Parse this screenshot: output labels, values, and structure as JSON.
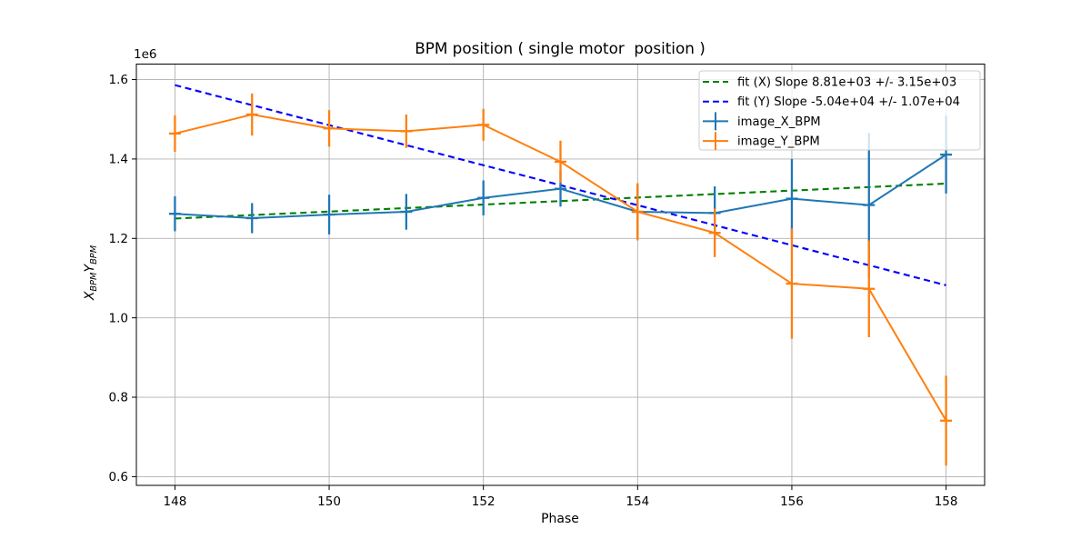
{
  "chart_data": {
    "type": "line",
    "title": "BPM position ( single motor  position )",
    "xlabel": "Phase",
    "ylabel_parts": {
      "x_var": "X",
      "x_sub": "BPM",
      "y_var": "Y",
      "y_sub": "BPM"
    },
    "offset_text": "1e6",
    "x_ticks": [
      148,
      150,
      152,
      154,
      156,
      158
    ],
    "y_ticks_e6": [
      "0.6",
      "0.8",
      "1.0",
      "1.2",
      "1.4",
      "1.6"
    ],
    "xlim": [
      147.5,
      158.5
    ],
    "ylim_e6": [
      0.578,
      1.639
    ],
    "grid": true,
    "legend_position": "upper right",
    "x": [
      148,
      149,
      150,
      151,
      152,
      153,
      154,
      155,
      156,
      157,
      158
    ],
    "series": [
      {
        "name": "image_X_BPM",
        "color": "#1f77b4",
        "values_e6": [
          1.262,
          1.251,
          1.26,
          1.267,
          1.302,
          1.325,
          1.267,
          1.264,
          1.3,
          1.284,
          1.411
        ],
        "yerr_e6": [
          0.044,
          0.038,
          0.05,
          0.045,
          0.044,
          0.045,
          0.067,
          0.067,
          0.1,
          0.182,
          0.098
        ]
      },
      {
        "name": "image_Y_BPM",
        "color": "#ff7f0e",
        "values_e6": [
          1.464,
          1.512,
          1.477,
          1.47,
          1.486,
          1.393,
          1.267,
          1.214,
          1.086,
          1.073,
          0.741
        ],
        "yerr_e6": [
          0.046,
          0.053,
          0.046,
          0.042,
          0.04,
          0.053,
          0.072,
          0.061,
          0.139,
          0.122,
          0.113
        ]
      }
    ],
    "fit_lines": [
      {
        "label": "fit (X) Slope 8.81e+03 +/- 3.15e+03",
        "color": "#008000",
        "x": [
          148,
          158
        ],
        "y_e6": [
          1.25,
          1.338
        ]
      },
      {
        "label": "fit (Y) Slope -5.04e+04 +/- 1.07e+04",
        "color": "#0000ff",
        "x": [
          148,
          158
        ],
        "y_e6": [
          1.586,
          1.082
        ]
      }
    ],
    "colors": {
      "grid": "#b0b0b0",
      "spine": "#000000",
      "legend_border": "#cccccc",
      "background": "#ffffff"
    }
  }
}
